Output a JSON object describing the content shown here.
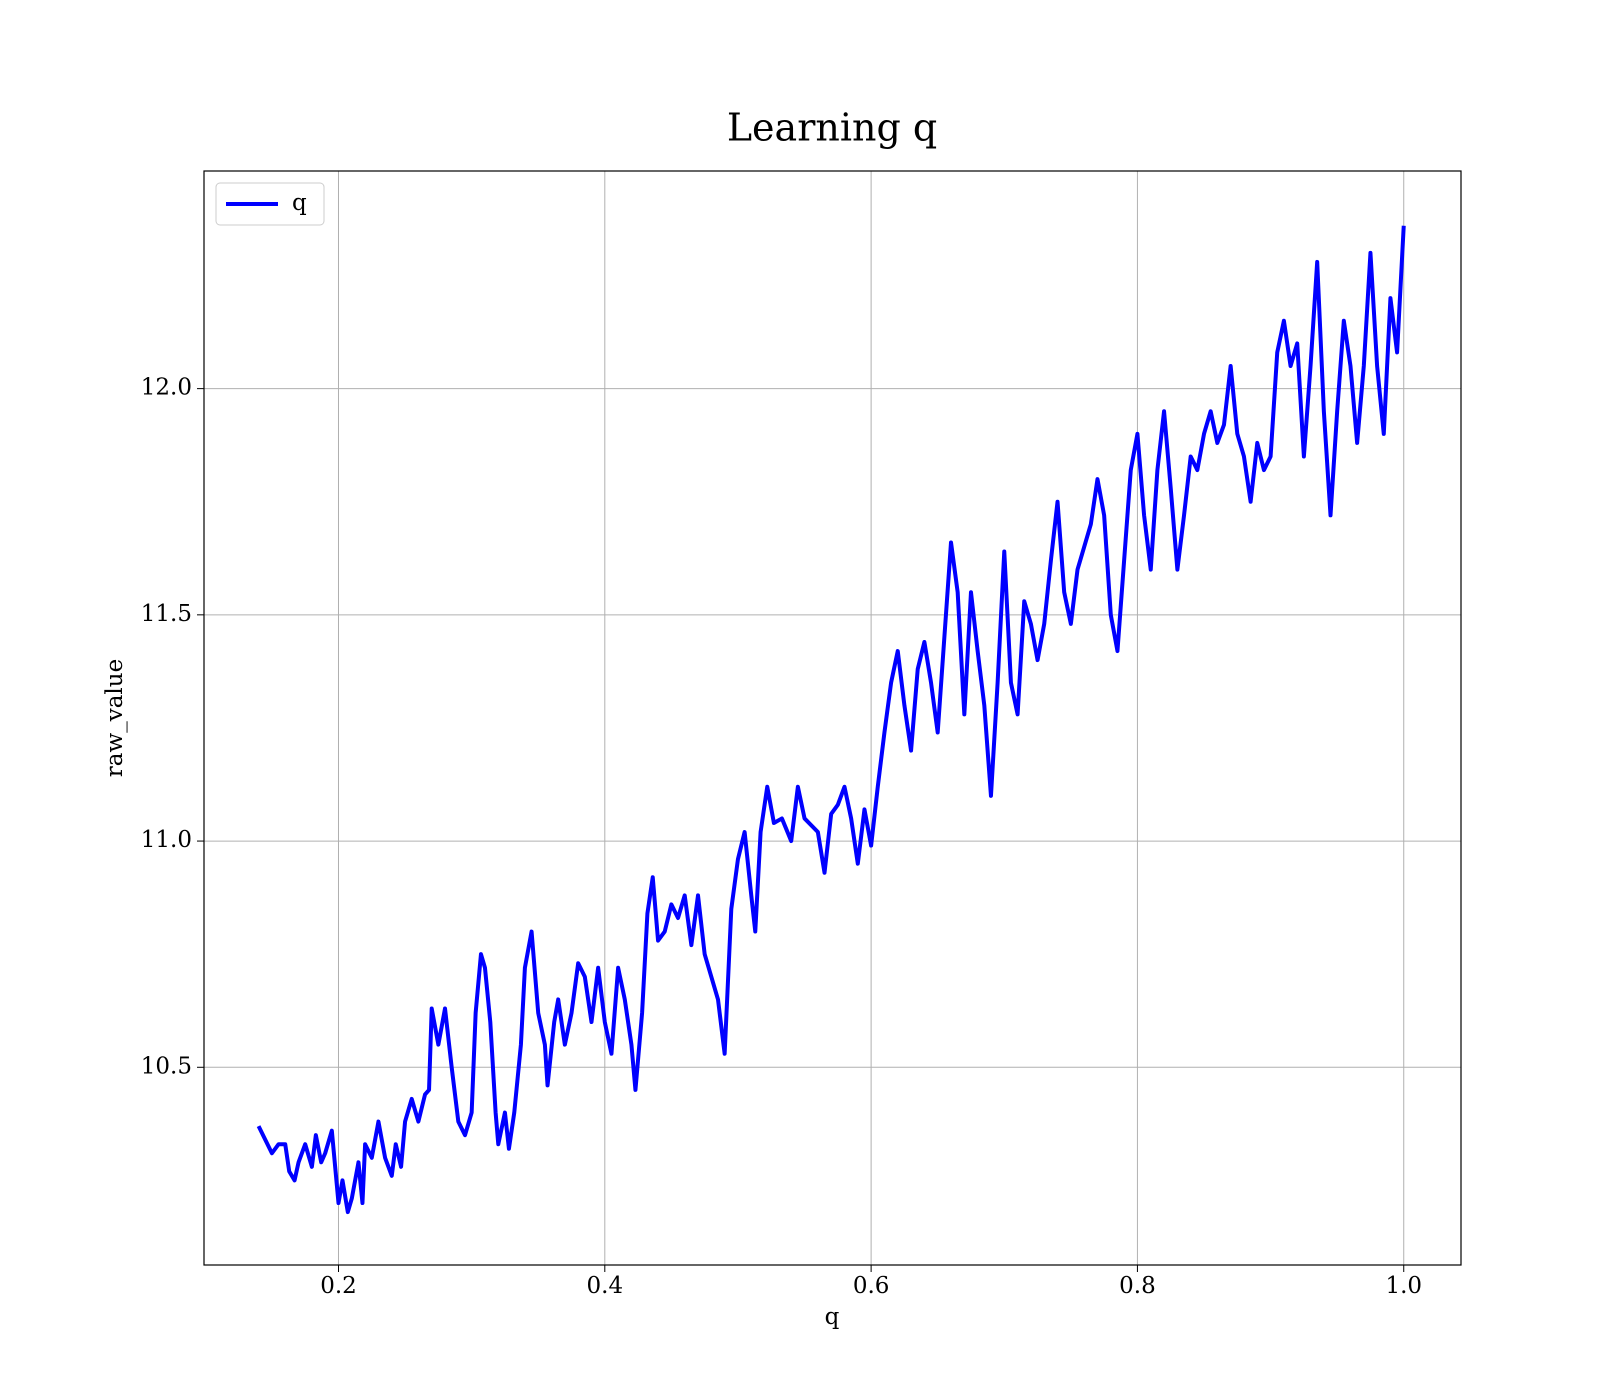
{
  "chart_data": {
    "type": "line",
    "title": "Learning q",
    "xlabel": "q",
    "ylabel": "raw_value",
    "xlim": [
      0.099,
      1.043
    ],
    "ylim": [
      10.063,
      12.481
    ],
    "xticks": [
      0.2,
      0.4,
      0.6,
      0.8,
      {
        "value": 1.0,
        "label": "1.0"
      }
    ],
    "yticks": [
      10.5,
      {
        "value": 11.0,
        "label": "11.0"
      },
      11.5,
      {
        "value": 12.0,
        "label": "12.0"
      }
    ],
    "grid": true,
    "legend": "upper left",
    "x": [
      0.14,
      0.15,
      0.155,
      0.16,
      0.163,
      0.167,
      0.17,
      0.175,
      0.18,
      0.183,
      0.187,
      0.19,
      0.195,
      0.2,
      0.203,
      0.207,
      0.21,
      0.215,
      0.218,
      0.22,
      0.225,
      0.23,
      0.235,
      0.24,
      0.243,
      0.247,
      0.25,
      0.255,
      0.26,
      0.265,
      0.268,
      0.27,
      0.275,
      0.28,
      0.285,
      0.29,
      0.295,
      0.3,
      0.303,
      0.307,
      0.31,
      0.314,
      0.318,
      0.32,
      0.325,
      0.328,
      0.332,
      0.337,
      0.34,
      0.345,
      0.35,
      0.355,
      0.357,
      0.362,
      0.365,
      0.37,
      0.375,
      0.38,
      0.385,
      0.39,
      0.395,
      0.4,
      0.405,
      0.41,
      0.415,
      0.42,
      0.423,
      0.428,
      0.432,
      0.436,
      0.44,
      0.445,
      0.45,
      0.455,
      0.46,
      0.465,
      0.47,
      0.475,
      0.48,
      0.485,
      0.49,
      0.495,
      0.5,
      0.505,
      0.51,
      0.513,
      0.517,
      0.522,
      0.527,
      0.533,
      0.54,
      0.545,
      0.55,
      0.56,
      0.565,
      0.57,
      0.575,
      0.58,
      0.585,
      0.59,
      0.595,
      0.6,
      0.605,
      0.61,
      0.615,
      0.62,
      0.625,
      0.63,
      0.635,
      0.64,
      0.645,
      0.65,
      0.655,
      0.66,
      0.665,
      0.67,
      0.675,
      0.68,
      0.685,
      0.69,
      0.695,
      0.7,
      0.705,
      0.71,
      0.715,
      0.72,
      0.725,
      0.73,
      0.735,
      0.74,
      0.745,
      0.75,
      0.755,
      0.76,
      0.765,
      0.77,
      0.775,
      0.78,
      0.785,
      0.79,
      0.795,
      0.8,
      0.805,
      0.81,
      0.815,
      0.82,
      0.825,
      0.83,
      0.835,
      0.84,
      0.845,
      0.85,
      0.855,
      0.86,
      0.865,
      0.87,
      0.875,
      0.88,
      0.885,
      0.89,
      0.895,
      0.9,
      0.905,
      0.91,
      0.915,
      0.92,
      0.925,
      0.93,
      0.935,
      0.94,
      0.945,
      0.95,
      0.955,
      0.96,
      0.965,
      0.97,
      0.975,
      0.98,
      0.985,
      0.99,
      0.995,
      1.0
    ],
    "series": [
      {
        "name": "q",
        "color": "#0000ff",
        "values": [
          10.37,
          10.31,
          10.33,
          10.33,
          10.27,
          10.25,
          10.29,
          10.33,
          10.28,
          10.35,
          10.29,
          10.31,
          10.36,
          10.2,
          10.25,
          10.18,
          10.21,
          10.29,
          10.2,
          10.33,
          10.3,
          10.38,
          10.3,
          10.26,
          10.33,
          10.28,
          10.38,
          10.43,
          10.38,
          10.44,
          10.45,
          10.63,
          10.55,
          10.63,
          10.5,
          10.38,
          10.35,
          10.4,
          10.62,
          10.75,
          10.72,
          10.6,
          10.4,
          10.33,
          10.4,
          10.32,
          10.4,
          10.55,
          10.72,
          10.8,
          10.62,
          10.55,
          10.46,
          10.6,
          10.65,
          10.55,
          10.62,
          10.73,
          10.7,
          10.6,
          10.72,
          10.6,
          10.53,
          10.72,
          10.65,
          10.55,
          10.45,
          10.62,
          10.84,
          10.92,
          10.78,
          10.8,
          10.86,
          10.83,
          10.88,
          10.77,
          10.88,
          10.75,
          10.7,
          10.65,
          10.53,
          10.85,
          10.96,
          11.02,
          10.88,
          10.8,
          11.02,
          11.12,
          11.04,
          11.05,
          11.0,
          11.12,
          11.05,
          11.02,
          10.93,
          11.06,
          11.08,
          11.12,
          11.05,
          10.95,
          11.07,
          10.99,
          11.12,
          11.24,
          11.35,
          11.42,
          11.3,
          11.2,
          11.38,
          11.44,
          11.35,
          11.24,
          11.45,
          11.66,
          11.55,
          11.28,
          11.55,
          11.42,
          11.3,
          11.1,
          11.35,
          11.64,
          11.35,
          11.28,
          11.53,
          11.48,
          11.4,
          11.48,
          11.62,
          11.75,
          11.55,
          11.48,
          11.6,
          11.65,
          11.7,
          11.8,
          11.72,
          11.5,
          11.42,
          11.62,
          11.82,
          11.9,
          11.72,
          11.6,
          11.82,
          11.95,
          11.78,
          11.6,
          11.72,
          11.85,
          11.82,
          11.9,
          11.95,
          11.88,
          11.92,
          12.05,
          11.9,
          11.85,
          11.75,
          11.88,
          11.82,
          11.85,
          12.08,
          12.15,
          12.05,
          12.1,
          11.85,
          12.05,
          12.28,
          11.95,
          11.72,
          11.95,
          12.15,
          12.05,
          11.88,
          12.05,
          12.3,
          12.05,
          11.9,
          12.2,
          12.08,
          12.36
        ]
      }
    ]
  }
}
